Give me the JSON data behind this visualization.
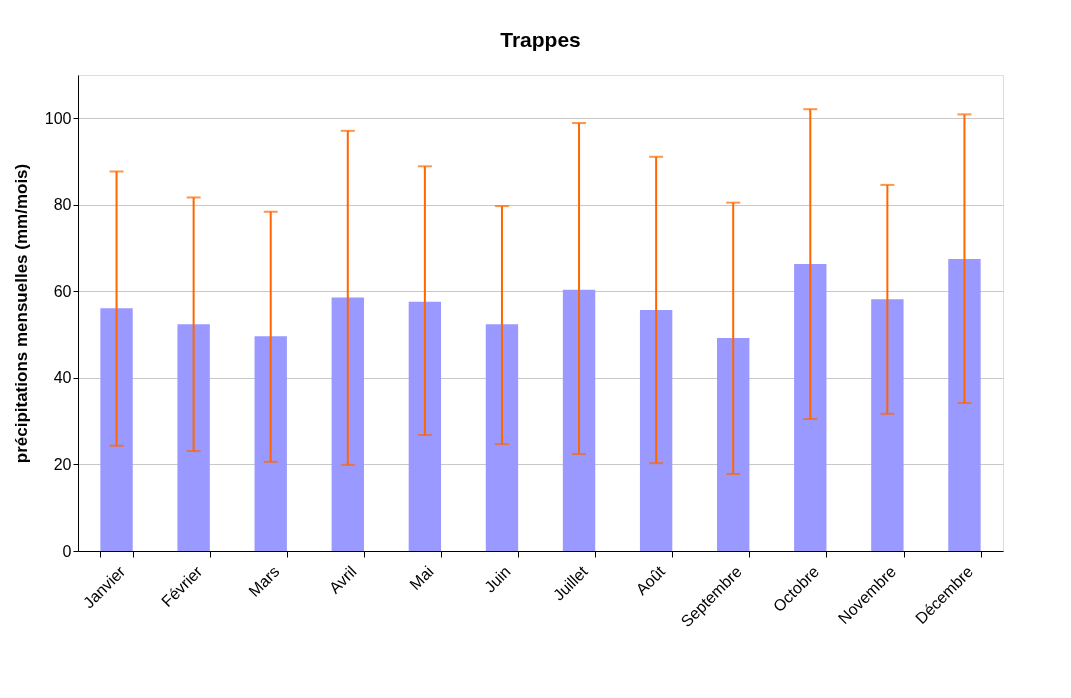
{
  "chart_data": {
    "type": "bar",
    "title": "Trappes",
    "ylabel": "précipitations mensuelles (mm/mois)",
    "categories": [
      "Janvier",
      "Février",
      "Mars",
      "Avril",
      "Mai",
      "Juin",
      "Juillet",
      "Août",
      "Septembre",
      "Octobre",
      "Novembre",
      "Décembre"
    ],
    "series": [
      {
        "color": "#9999ff",
        "values": [
          56.1,
          52.4,
          49.6,
          58.6,
          57.6,
          52.4,
          60.4,
          55.7,
          49.2,
          66.3,
          58.2,
          67.5
        ],
        "errors": [
          [
            24.3,
            87.7
          ],
          [
            23.1,
            81.7
          ],
          [
            20.6,
            78.4
          ],
          [
            19.9,
            97.1
          ],
          [
            26.8,
            88.9
          ],
          [
            24.7,
            79.7
          ],
          [
            22.4,
            98.9
          ],
          [
            20.3,
            91.1
          ],
          [
            17.8,
            80.5
          ],
          [
            30.5,
            102.1
          ],
          [
            31.7,
            84.6
          ],
          [
            34.2,
            100.9
          ]
        ]
      }
    ],
    "ylim": [
      0,
      110
    ],
    "yticks": [
      0,
      20,
      40,
      60,
      80,
      100
    ],
    "grid": "y"
  }
}
